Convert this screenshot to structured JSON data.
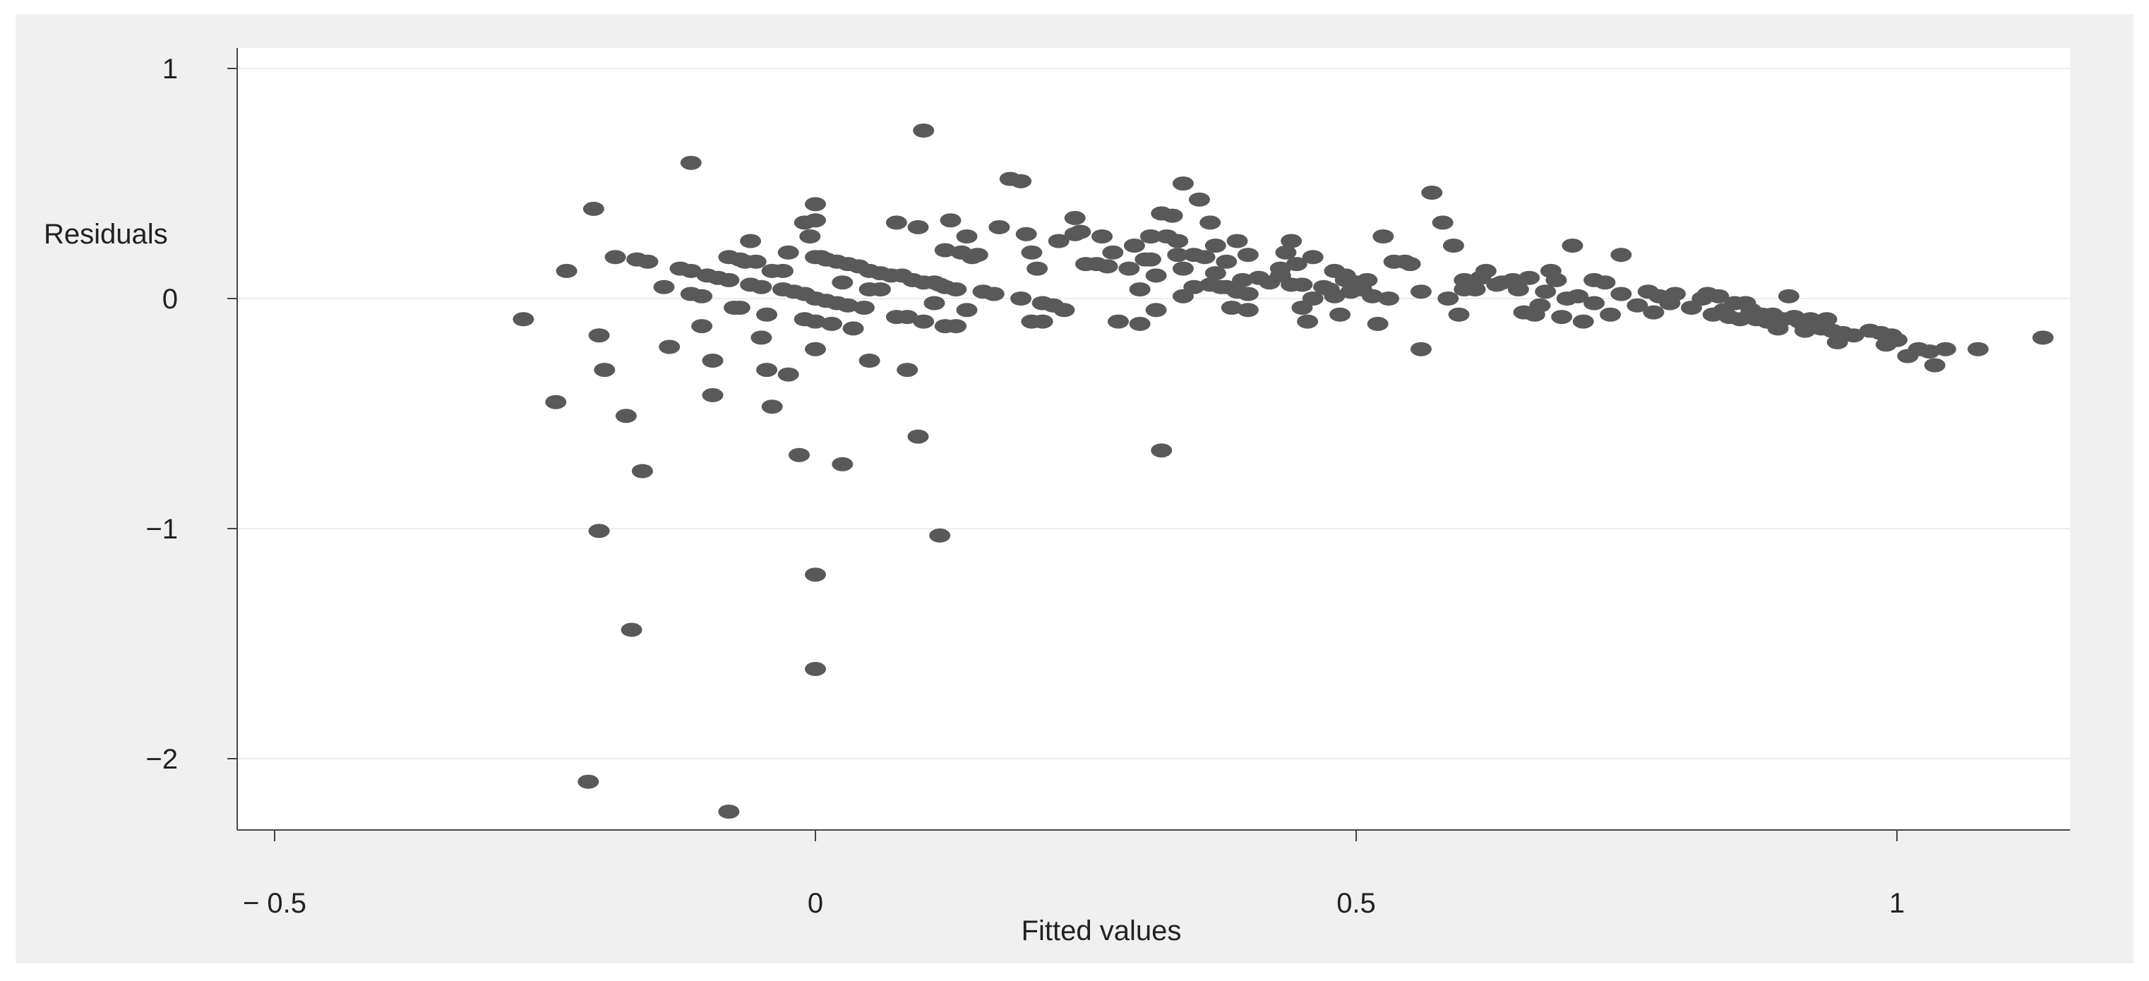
{
  "colors": {
    "outer_background": "#f0f0f0",
    "plot_background": "#ffffff",
    "marker": "#595959",
    "axis": "#444444",
    "grid": "#ececec"
  },
  "chart_data": {
    "type": "scatter",
    "title": "",
    "xlabel": "Fitted values",
    "ylabel": "Residuals",
    "xlim": [
      -0.55,
      1.15
    ],
    "ylim": [
      -2.3,
      1.1
    ],
    "xticks": [
      -0.5,
      0,
      0.5,
      1
    ],
    "xtick_labels": [
      "− 0.5",
      "0",
      "0.5",
      "1"
    ],
    "yticks": [
      1,
      0,
      -1,
      -2
    ],
    "ytick_labels": [
      "1",
      "0",
      "−1",
      "−2"
    ],
    "grid": true,
    "legend": "none",
    "points": [
      [
        -0.27,
        -0.09
      ],
      [
        -0.24,
        -0.45
      ],
      [
        -0.23,
        0.12
      ],
      [
        -0.205,
        0.39
      ],
      [
        -0.2,
        -0.16
      ],
      [
        -0.195,
        -0.31
      ],
      [
        -0.2,
        -1.01
      ],
      [
        -0.21,
        -2.1
      ],
      [
        -0.185,
        0.18
      ],
      [
        -0.175,
        -0.51
      ],
      [
        -0.17,
        -1.44
      ],
      [
        -0.165,
        0.17
      ],
      [
        -0.155,
        0.16
      ],
      [
        -0.16,
        -0.75
      ],
      [
        -0.14,
        0.05
      ],
      [
        -0.135,
        -0.21
      ],
      [
        -0.125,
        0.13
      ],
      [
        -0.115,
        0.12
      ],
      [
        -0.115,
        0.02
      ],
      [
        -0.115,
        0.59
      ],
      [
        -0.105,
        0.01
      ],
      [
        -0.1,
        0.1
      ],
      [
        -0.105,
        -0.12
      ],
      [
        -0.095,
        -0.27
      ],
      [
        -0.095,
        -0.42
      ],
      [
        -0.09,
        0.09
      ],
      [
        -0.08,
        0.08
      ],
      [
        -0.08,
        0.18
      ],
      [
        -0.075,
        -0.04
      ],
      [
        -0.07,
        0.17
      ],
      [
        -0.07,
        -0.04
      ],
      [
        -0.08,
        -2.23
      ],
      [
        -0.065,
        0.16
      ],
      [
        -0.06,
        0.25
      ],
      [
        -0.06,
        0.06
      ],
      [
        -0.055,
        0.16
      ],
      [
        -0.05,
        0.05
      ],
      [
        -0.05,
        -0.17
      ],
      [
        -0.045,
        -0.07
      ],
      [
        -0.045,
        -0.31
      ],
      [
        -0.04,
        0.12
      ],
      [
        -0.04,
        -0.47
      ],
      [
        -0.03,
        0.04
      ],
      [
        -0.03,
        0.12
      ],
      [
        -0.025,
        -0.33
      ],
      [
        -0.025,
        0.2
      ],
      [
        -0.02,
        0.03
      ],
      [
        -0.015,
        -0.68
      ],
      [
        -0.01,
        0.02
      ],
      [
        -0.01,
        -0.09
      ],
      [
        -0.01,
        0.33
      ],
      [
        -0.005,
        0.27
      ],
      [
        0.0,
        0.34
      ],
      [
        0.0,
        0.18
      ],
      [
        0.0,
        -0.1
      ],
      [
        0.0,
        0.0
      ],
      [
        0.0,
        -0.22
      ],
      [
        0.0,
        -1.2
      ],
      [
        0.0,
        -1.61
      ],
      [
        0.0,
        0.41
      ],
      [
        0.005,
        0.18
      ],
      [
        0.01,
        0.17
      ],
      [
        0.01,
        -0.01
      ],
      [
        0.015,
        -0.11
      ],
      [
        0.02,
        0.16
      ],
      [
        0.02,
        -0.02
      ],
      [
        0.025,
        0.07
      ],
      [
        0.025,
        -0.72
      ],
      [
        0.03,
        -0.03
      ],
      [
        0.03,
        0.15
      ],
      [
        0.035,
        -0.13
      ],
      [
        0.04,
        0.14
      ],
      [
        0.045,
        -0.04
      ],
      [
        0.05,
        0.04
      ],
      [
        0.05,
        0.12
      ],
      [
        0.05,
        -0.27
      ],
      [
        0.06,
        0.04
      ],
      [
        0.06,
        0.11
      ],
      [
        0.07,
        0.1
      ],
      [
        0.075,
        -0.08
      ],
      [
        0.075,
        0.33
      ],
      [
        0.08,
        0.1
      ],
      [
        0.085,
        -0.31
      ],
      [
        0.085,
        -0.08
      ],
      [
        0.09,
        0.08
      ],
      [
        0.095,
        -0.6
      ],
      [
        0.095,
        0.31
      ],
      [
        0.1,
        0.07
      ],
      [
        0.1,
        -0.1
      ],
      [
        0.1,
        0.73
      ],
      [
        0.11,
        0.07
      ],
      [
        0.11,
        -0.02
      ],
      [
        0.115,
        0.06
      ],
      [
        0.115,
        -1.03
      ],
      [
        0.12,
        -0.12
      ],
      [
        0.12,
        0.05
      ],
      [
        0.12,
        0.21
      ],
      [
        0.125,
        0.34
      ],
      [
        0.13,
        -0.12
      ],
      [
        0.13,
        0.04
      ],
      [
        0.135,
        0.2
      ],
      [
        0.14,
        0.27
      ],
      [
        0.14,
        -0.05
      ],
      [
        0.145,
        0.18
      ],
      [
        0.15,
        0.19
      ],
      [
        0.155,
        0.03
      ],
      [
        0.165,
        0.02
      ],
      [
        0.17,
        0.31
      ],
      [
        0.18,
        0.52
      ],
      [
        0.19,
        0.0
      ],
      [
        0.19,
        0.51
      ],
      [
        0.195,
        0.28
      ],
      [
        0.2,
        -0.1
      ],
      [
        0.2,
        0.2
      ],
      [
        0.205,
        0.13
      ],
      [
        0.21,
        -0.02
      ],
      [
        0.21,
        -0.1
      ],
      [
        0.22,
        -0.03
      ],
      [
        0.225,
        0.25
      ],
      [
        0.23,
        -0.05
      ],
      [
        0.24,
        0.28
      ],
      [
        0.24,
        0.35
      ],
      [
        0.245,
        0.29
      ],
      [
        0.25,
        0.15
      ],
      [
        0.26,
        0.15
      ],
      [
        0.265,
        0.27
      ],
      [
        0.27,
        0.14
      ],
      [
        0.275,
        0.2
      ],
      [
        0.28,
        -0.1
      ],
      [
        0.29,
        0.13
      ],
      [
        0.295,
        0.23
      ],
      [
        0.3,
        0.04
      ],
      [
        0.3,
        -0.11
      ],
      [
        0.305,
        0.17
      ],
      [
        0.31,
        0.27
      ],
      [
        0.31,
        0.27
      ],
      [
        0.31,
        0.17
      ],
      [
        0.315,
        -0.05
      ],
      [
        0.315,
        0.1
      ],
      [
        0.32,
        0.37
      ],
      [
        0.32,
        -0.66
      ],
      [
        0.325,
        0.27
      ],
      [
        0.33,
        0.36
      ],
      [
        0.335,
        0.19
      ],
      [
        0.335,
        0.25
      ],
      [
        0.34,
        0.01
      ],
      [
        0.34,
        0.13
      ],
      [
        0.34,
        0.5
      ],
      [
        0.35,
        0.05
      ],
      [
        0.35,
        0.19
      ],
      [
        0.355,
        0.43
      ],
      [
        0.36,
        0.18
      ],
      [
        0.365,
        0.06
      ],
      [
        0.365,
        0.33
      ],
      [
        0.37,
        0.23
      ],
      [
        0.37,
        0.11
      ],
      [
        0.375,
        0.05
      ],
      [
        0.38,
        0.05
      ],
      [
        0.38,
        0.16
      ],
      [
        0.385,
        -0.04
      ],
      [
        0.39,
        0.03
      ],
      [
        0.39,
        0.25
      ],
      [
        0.395,
        0.08
      ],
      [
        0.4,
        -0.05
      ],
      [
        0.4,
        0.02
      ],
      [
        0.4,
        0.19
      ],
      [
        0.41,
        0.09
      ],
      [
        0.42,
        0.07
      ],
      [
        0.43,
        0.1
      ],
      [
        0.43,
        0.13
      ],
      [
        0.435,
        0.2
      ],
      [
        0.44,
        0.06
      ],
      [
        0.44,
        0.25
      ],
      [
        0.445,
        0.15
      ],
      [
        0.45,
        -0.04
      ],
      [
        0.45,
        0.06
      ],
      [
        0.455,
        -0.1
      ],
      [
        0.46,
        0.18
      ],
      [
        0.46,
        0.0
      ],
      [
        0.47,
        0.05
      ],
      [
        0.475,
        0.04
      ],
      [
        0.48,
        0.12
      ],
      [
        0.48,
        0.01
      ],
      [
        0.485,
        -0.07
      ],
      [
        0.49,
        0.08
      ],
      [
        0.49,
        0.1
      ],
      [
        0.495,
        0.03
      ],
      [
        0.5,
        0.07
      ],
      [
        0.505,
        0.04
      ],
      [
        0.51,
        0.08
      ],
      [
        0.515,
        0.01
      ],
      [
        0.52,
        -0.11
      ],
      [
        0.525,
        0.27
      ],
      [
        0.53,
        0.0
      ],
      [
        0.535,
        0.16
      ],
      [
        0.545,
        0.16
      ],
      [
        0.55,
        0.15
      ],
      [
        0.56,
        0.03
      ],
      [
        0.56,
        -0.22
      ],
      [
        0.57,
        0.46
      ],
      [
        0.58,
        0.33
      ],
      [
        0.585,
        0.0
      ],
      [
        0.59,
        0.23
      ],
      [
        0.595,
        -0.07
      ],
      [
        0.6,
        0.04
      ],
      [
        0.6,
        0.08
      ],
      [
        0.61,
        0.04
      ],
      [
        0.615,
        0.09
      ],
      [
        0.62,
        0.12
      ],
      [
        0.63,
        0.06
      ],
      [
        0.635,
        0.07
      ],
      [
        0.645,
        0.08
      ],
      [
        0.65,
        0.04
      ],
      [
        0.655,
        -0.06
      ],
      [
        0.66,
        0.09
      ],
      [
        0.665,
        -0.07
      ],
      [
        0.67,
        -0.03
      ],
      [
        0.675,
        0.03
      ],
      [
        0.68,
        0.12
      ],
      [
        0.685,
        0.08
      ],
      [
        0.69,
        -0.08
      ],
      [
        0.695,
        0.0
      ],
      [
        0.7,
        0.23
      ],
      [
        0.705,
        0.01
      ],
      [
        0.71,
        -0.1
      ],
      [
        0.72,
        0.08
      ],
      [
        0.72,
        -0.02
      ],
      [
        0.73,
        0.07
      ],
      [
        0.735,
        -0.07
      ],
      [
        0.745,
        0.02
      ],
      [
        0.745,
        0.19
      ],
      [
        0.76,
        -0.03
      ],
      [
        0.77,
        0.03
      ],
      [
        0.775,
        -0.06
      ],
      [
        0.78,
        0.01
      ],
      [
        0.79,
        -0.02
      ],
      [
        0.795,
        0.02
      ],
      [
        0.81,
        -0.04
      ],
      [
        0.82,
        0.0
      ],
      [
        0.825,
        0.02
      ],
      [
        0.83,
        -0.07
      ],
      [
        0.835,
        0.01
      ],
      [
        0.84,
        -0.05
      ],
      [
        0.845,
        -0.08
      ],
      [
        0.85,
        -0.02
      ],
      [
        0.855,
        -0.09
      ],
      [
        0.86,
        -0.02
      ],
      [
        0.865,
        -0.05
      ],
      [
        0.87,
        -0.09
      ],
      [
        0.875,
        -0.07
      ],
      [
        0.88,
        -0.1
      ],
      [
        0.885,
        -0.07
      ],
      [
        0.89,
        -0.13
      ],
      [
        0.895,
        -0.09
      ],
      [
        0.9,
        0.01
      ],
      [
        0.905,
        -0.08
      ],
      [
        0.91,
        -0.1
      ],
      [
        0.915,
        -0.14
      ],
      [
        0.92,
        -0.09
      ],
      [
        0.925,
        -0.11
      ],
      [
        0.93,
        -0.13
      ],
      [
        0.935,
        -0.09
      ],
      [
        0.94,
        -0.14
      ],
      [
        0.945,
        -0.19
      ],
      [
        0.95,
        -0.15
      ],
      [
        0.96,
        -0.16
      ],
      [
        0.975,
        -0.14
      ],
      [
        0.985,
        -0.15
      ],
      [
        0.99,
        -0.2
      ],
      [
        0.995,
        -0.16
      ],
      [
        1.0,
        -0.18
      ],
      [
        1.01,
        -0.25
      ],
      [
        1.02,
        -0.22
      ],
      [
        1.03,
        -0.23
      ],
      [
        1.035,
        -0.29
      ],
      [
        1.045,
        -0.22
      ],
      [
        1.075,
        -0.22
      ],
      [
        1.135,
        -0.17
      ]
    ]
  }
}
